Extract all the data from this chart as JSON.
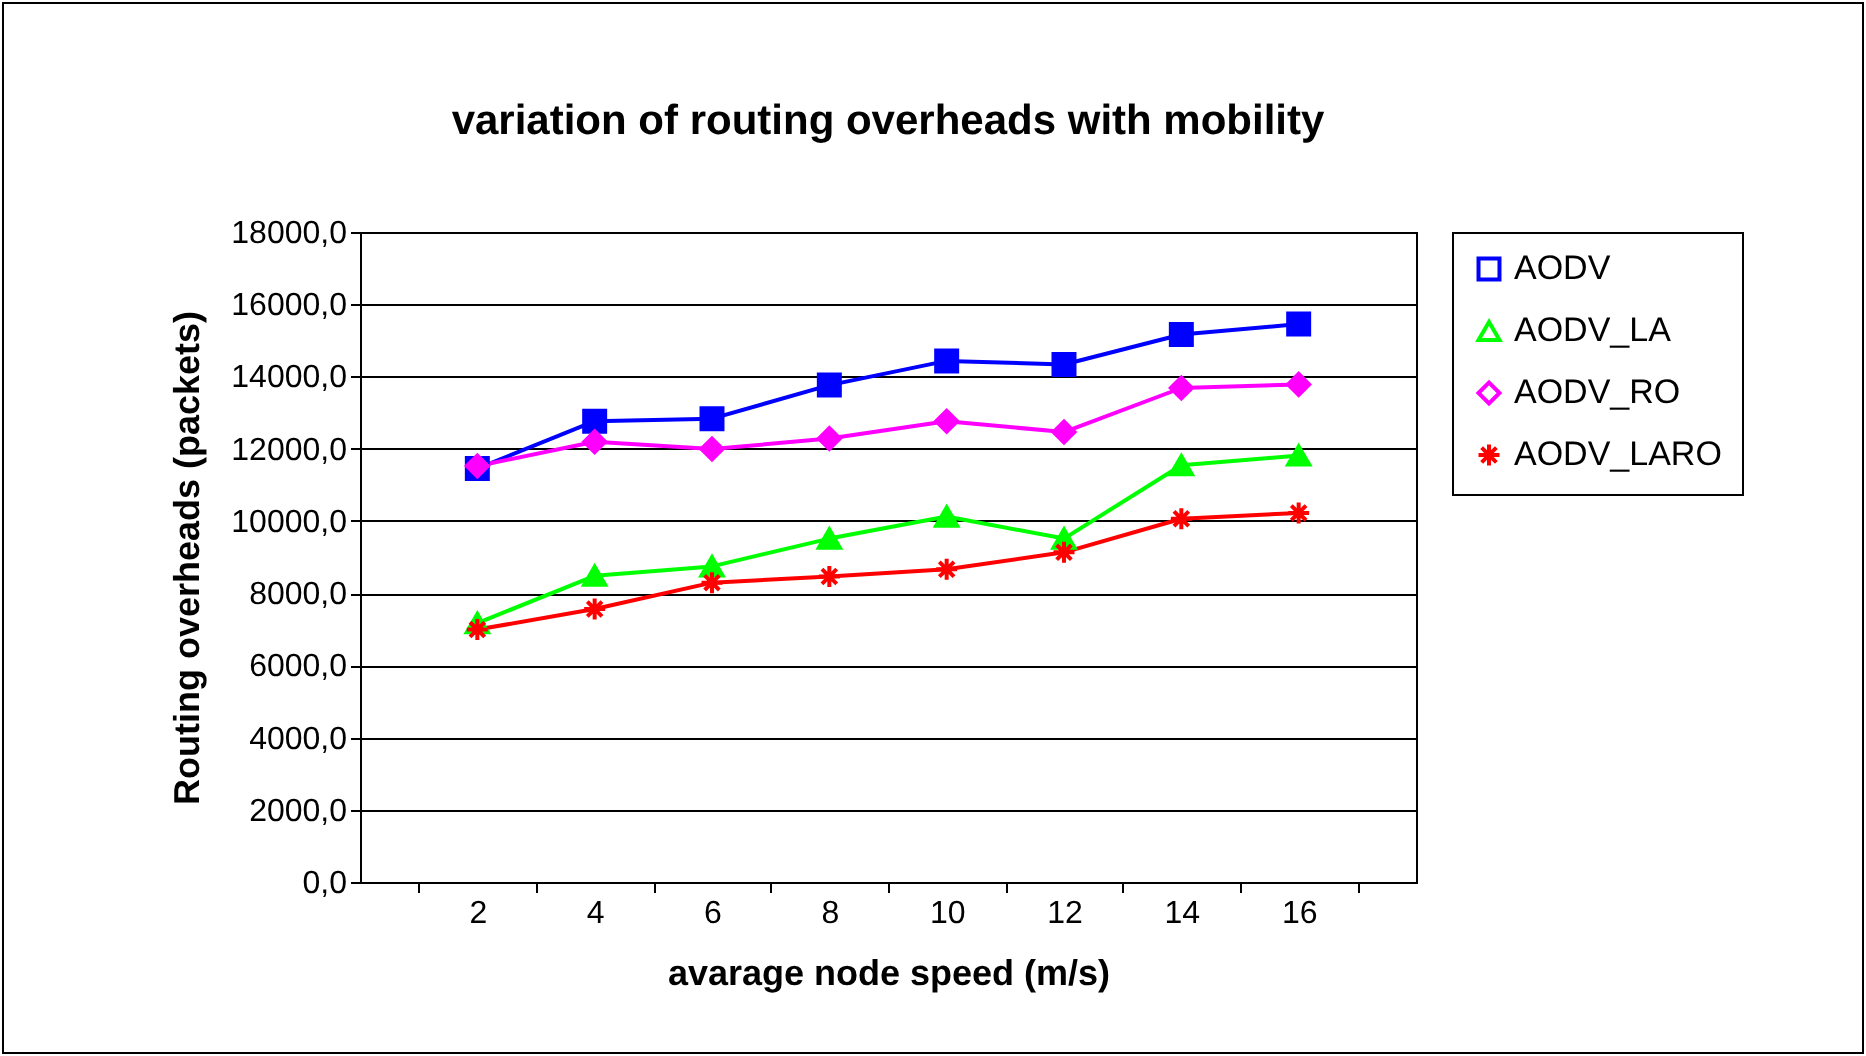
{
  "chart_data": {
    "type": "line",
    "title": "variation of routing overheads with mobility",
    "xlabel": "avarage node speed (m/s)",
    "ylabel": "Routing overheads (packets)",
    "categories": [
      "2",
      "4",
      "6",
      "8",
      "10",
      "12",
      "14",
      "16"
    ],
    "series": [
      {
        "name": "AODV",
        "color": "#0000ff",
        "marker": "square",
        "values": [
          11450,
          12760,
          12830,
          13760,
          14430,
          14330,
          15160,
          15450
        ]
      },
      {
        "name": "AODV_LA",
        "color": "#00ff00",
        "marker": "triangle",
        "values": [
          7170,
          8480,
          8740,
          9510,
          10120,
          9510,
          11540,
          11810
        ]
      },
      {
        "name": "AODV_RO",
        "color": "#ff00ff",
        "marker": "diamond",
        "values": [
          11520,
          12190,
          11990,
          12280,
          12760,
          12460,
          13680,
          13780
        ]
      },
      {
        "name": "AODV_LARO",
        "color": "#ff0000",
        "marker": "cross",
        "values": [
          6990,
          7560,
          8290,
          8460,
          8660,
          9130,
          10060,
          10220
        ]
      }
    ],
    "ylim": [
      0,
      18000
    ],
    "yticks": [
      {
        "value": 0,
        "label": "0,0"
      },
      {
        "value": 2000,
        "label": "2000,0"
      },
      {
        "value": 4000,
        "label": "4000,0"
      },
      {
        "value": 6000,
        "label": "6000,0"
      },
      {
        "value": 8000,
        "label": "8000,0"
      },
      {
        "value": 10000,
        "label": "10000,0"
      },
      {
        "value": 12000,
        "label": "12000,0"
      },
      {
        "value": 14000,
        "label": "14000,0"
      },
      {
        "value": 16000,
        "label": "16000,0"
      },
      {
        "value": 18000,
        "label": "18000,0"
      }
    ],
    "grid": "y",
    "legend": "right"
  }
}
